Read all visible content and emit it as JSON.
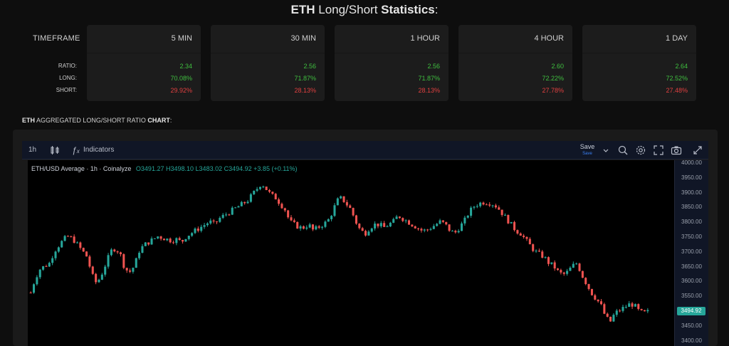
{
  "page": {
    "title_bold": "ETH",
    "title_mid": " Long/Short ",
    "title_bold2": "Statistics",
    "title_end": ":"
  },
  "table": {
    "timeframe_label": "TIMEFRAME",
    "row_labels": {
      "ratio": "RATIO:",
      "long": "LONG:",
      "short": "SHORT:"
    },
    "cards": [
      {
        "name": "5 MIN",
        "ratio": "2.34",
        "long": "70.08%",
        "short": "29.92%"
      },
      {
        "name": "30 MIN",
        "ratio": "2.56",
        "long": "71.87%",
        "short": "28.13%"
      },
      {
        "name": "1 HOUR",
        "ratio": "2.56",
        "long": "71.87%",
        "short": "28.13%"
      },
      {
        "name": "4 HOUR",
        "ratio": "2.60",
        "long": "72.22%",
        "short": "27.78%"
      },
      {
        "name": "1 DAY",
        "ratio": "2.64",
        "long": "72.52%",
        "short": "27.48%"
      }
    ]
  },
  "section": {
    "bold": "ETH",
    "mid": " AGGREGATED LONG/SHORT RATIO ",
    "bold2": "CHART",
    "end": ":"
  },
  "toolbar": {
    "interval": "1h",
    "indicators_label": "Indicators",
    "save_label": "Save",
    "save_sub": "Save",
    "icons": [
      "candles-icon",
      "fx-icon",
      "chevron-down-icon",
      "magnify-icon",
      "gear-icon",
      "fullscreen-icon",
      "camera-icon",
      "arrows-icon"
    ]
  },
  "legend": {
    "symbol": "ETH/USD Average · 1h · Coinalyze",
    "open": "O3491.27",
    "high": "H3498.10",
    "low": "L3483.02",
    "close": "C3494.92",
    "change": "+3.85 (+0.11%)"
  },
  "price_tag": "3494.92",
  "chart_data": {
    "type": "candlestick",
    "title": "ETH/USD Average · 1h · Coinalyze",
    "y_ticks": [
      "4000.00",
      "3950.00",
      "3900.00",
      "3850.00",
      "3800.00",
      "3750.00",
      "3700.00",
      "3650.00",
      "3600.00",
      "3550.00",
      "3500.00",
      "3450.00",
      "3400.00"
    ],
    "ylim": [
      3400,
      4000
    ],
    "colors": {
      "up": "#26a69a",
      "down": "#ef5350"
    },
    "close_path": [
      3560,
      3610,
      3640,
      3650,
      3660,
      3700,
      3720,
      3740,
      3750,
      3740,
      3720,
      3700,
      3680,
      3620,
      3590,
      3620,
      3660,
      3700,
      3710,
      3690,
      3640,
      3630,
      3650,
      3700,
      3720,
      3730,
      3740,
      3750,
      3745,
      3740,
      3735,
      3740,
      3730,
      3750,
      3760,
      3770,
      3780,
      3790,
      3800,
      3790,
      3810,
      3820,
      3830,
      3840,
      3850,
      3860,
      3870,
      3890,
      3910,
      3930,
      3910,
      3890,
      3880,
      3860,
      3840,
      3800,
      3790,
      3780,
      3780,
      3790,
      3770,
      3780,
      3790,
      3800,
      3830,
      3870,
      3880,
      3860,
      3840,
      3800,
      3770,
      3760,
      3780,
      3790,
      3790,
      3780,
      3790,
      3800,
      3820,
      3810,
      3800,
      3790,
      3780,
      3770,
      3770,
      3780,
      3790,
      3800,
      3790,
      3770,
      3760,
      3780,
      3800,
      3830,
      3850,
      3860,
      3865,
      3865,
      3860,
      3850,
      3830,
      3810,
      3790,
      3770,
      3760,
      3740,
      3720,
      3700,
      3690,
      3680,
      3660,
      3650,
      3630,
      3620,
      3630,
      3650,
      3660,
      3620,
      3590,
      3560,
      3540,
      3520,
      3480,
      3460,
      3490,
      3500,
      3510,
      3520,
      3520,
      3500,
      3490,
      3495
    ]
  }
}
